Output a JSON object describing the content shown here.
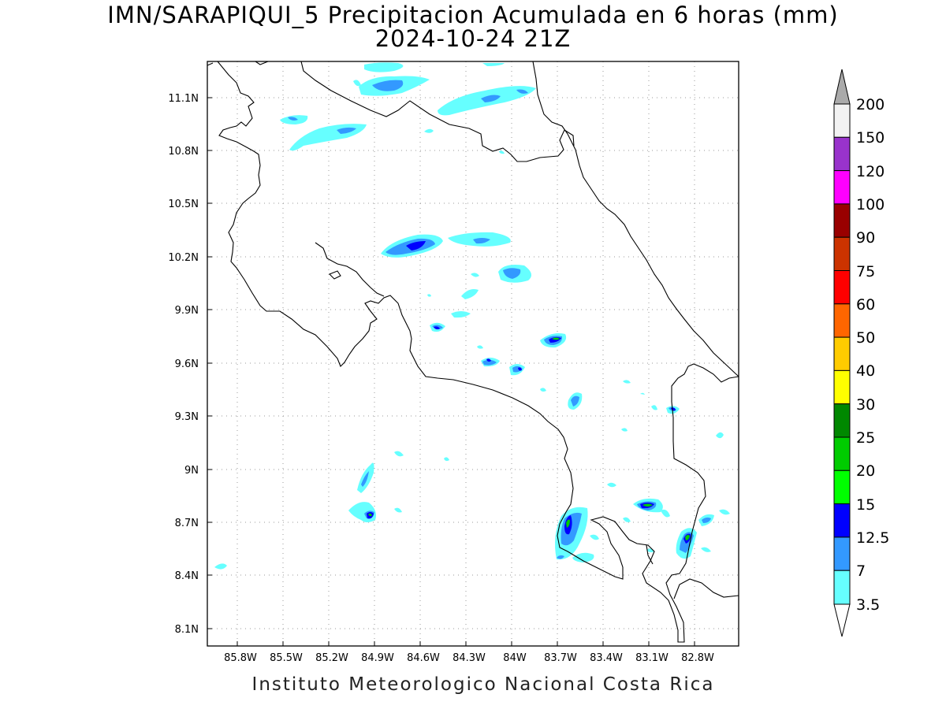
{
  "title_line1": "IMN/SARAPIQUI_5 Precipitacion Acumulada en 6 horas (mm)",
  "title_line2": "2024-10-24 21Z",
  "footer": "Instituto Meteorologico Nacional Costa Rica",
  "map": {
    "region": "Costa Rica",
    "lon_labels": [
      "85.8W",
      "85.5W",
      "85.2W",
      "84.9W",
      "84.6W",
      "84.3W",
      "84W",
      "83.7W",
      "83.4W",
      "83.1W",
      "82.8W"
    ],
    "lat_labels": [
      "11.1N",
      "10.8N",
      "10.5N",
      "10.2N",
      "9.9N",
      "9.6N",
      "9.3N",
      "9N",
      "8.7N",
      "8.4N",
      "8.1N"
    ],
    "grid": "dotted"
  },
  "legend": {
    "labels": [
      "200",
      "150",
      "120",
      "100",
      "90",
      "75",
      "60",
      "50",
      "40",
      "30",
      "25",
      "20",
      "15",
      "12.5",
      "7",
      "3.5"
    ],
    "colors": {
      "150-200": "#f2f2f2",
      "120-150": "#9933cc",
      "100-120": "#ff00ff",
      "90-100": "#990000",
      "75-90": "#cc3300",
      "60-75": "#ff0000",
      "50-60": "#ff6600",
      "40-50": "#ffcc00",
      "30-40": "#ffff00",
      "25-30": "#008800",
      "20-25": "#00cc00",
      "15-20": "#00ff00",
      "12.5-15": "#0000ff",
      "7-12.5": "#3399ff",
      "3.5-7": "#66ffff"
    },
    "above_max_color": "#aaaaaa"
  }
}
